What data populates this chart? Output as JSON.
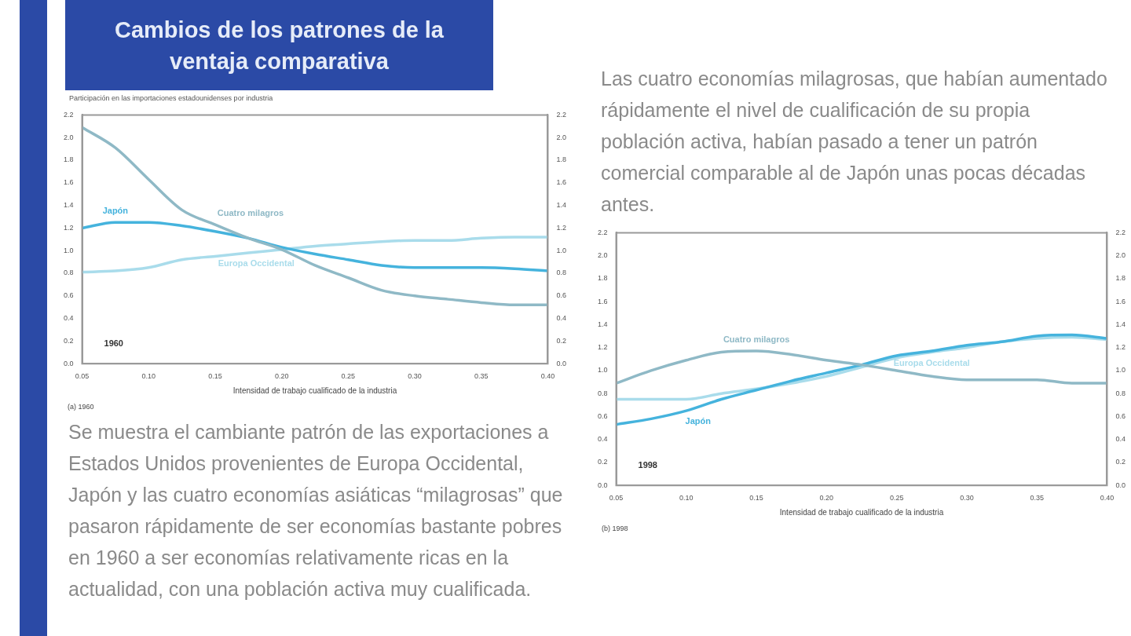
{
  "chart_data": [
    {
      "type": "line",
      "title": "Cambios de los patrones de la ventaja comparativa",
      "subtitle": "Participación en las importaciones estadounidenses por industria",
      "xlabel": "Intensidad de trabajo cualificado de la industria",
      "x": [
        0.05,
        0.075,
        0.1,
        0.125,
        0.15,
        0.175,
        0.2,
        0.225,
        0.25,
        0.275,
        0.3,
        0.325,
        0.35,
        0.375,
        0.4
      ],
      "series": [
        {
          "name": "Cuatro milagros",
          "color": "#8fb9c6",
          "values": [
            2.09,
            1.91,
            1.63,
            1.36,
            1.23,
            1.11,
            1.01,
            0.87,
            0.76,
            0.65,
            0.6,
            0.57,
            0.54,
            0.52,
            0.52
          ]
        },
        {
          "name": "Japón",
          "color": "#45b3dd",
          "values": [
            1.2,
            1.25,
            1.25,
            1.22,
            1.17,
            1.11,
            1.03,
            0.97,
            0.92,
            0.87,
            0.85,
            0.85,
            0.85,
            0.84,
            0.82
          ]
        },
        {
          "name": "Europa Occidental",
          "color": "#a9dceb",
          "values": [
            0.81,
            0.82,
            0.85,
            0.92,
            0.95,
            0.98,
            1.01,
            1.04,
            1.06,
            1.08,
            1.09,
            1.09,
            1.11,
            1.12,
            1.12
          ]
        }
      ],
      "xlim": [
        0.05,
        0.4
      ],
      "xticks": [
        0.05,
        {
          "value": 0.1,
          "label": "0.10"
        },
        0.15,
        {
          "value": 0.2,
          "label": "0.20"
        },
        0.25,
        {
          "value": 0.3,
          "label": "0.30"
        },
        0.35,
        {
          "value": 0.4,
          "label": "0.40"
        }
      ],
      "ylim": [
        0,
        2.2
      ],
      "yticks": [
        {
          "value": 0,
          "label": "0.0"
        },
        0.2,
        0.4,
        0.6,
        0.8,
        {
          "value": 1,
          "label": "1.0"
        },
        1.2,
        1.4,
        1.6,
        1.8,
        {
          "value": 2,
          "label": "2.0"
        },
        2.2
      ],
      "y2lim": [
        0,
        2.2
      ],
      "y2ticks": [
        {
          "value": 0,
          "label": "0.0"
        },
        0.2,
        0.4,
        0.6,
        0.8,
        {
          "value": 1,
          "label": "1.0"
        },
        1.2,
        1.4,
        1.6,
        1.8,
        {
          "value": 2,
          "label": "2.0"
        },
        2.2
      ],
      "grid": false,
      "legend": false,
      "annotations": [
        "1960",
        "(a) 1960",
        "Se muestra el cambiante patrón de las exportaciones a Estados Unidos provenientes de Europa Occidental, Japón y las cuatro economías asiáticas “milagrosas” que pasaron rápidamente de ser economías bastante pobres en 1960 a ser economías relativamente ricas en la actualidad, con una población activa muy cualificada."
      ]
    },
    {
      "type": "line",
      "xlabel": "Intensidad de trabajo cualificado de la industria",
      "x": [
        0.05,
        0.075,
        0.1,
        0.125,
        0.15,
        0.175,
        0.2,
        0.225,
        0.25,
        0.275,
        0.3,
        0.325,
        0.35,
        0.375,
        0.4
      ],
      "series": [
        {
          "name": "Cuatro milagros",
          "color": "#8fb9c6",
          "values": [
            0.89,
            1.0,
            1.09,
            1.16,
            1.17,
            1.14,
            1.09,
            1.05,
            1.0,
            0.95,
            0.92,
            0.92,
            0.92,
            0.89,
            0.89
          ]
        },
        {
          "name": "Japón",
          "color": "#45b3dd",
          "values": [
            0.53,
            0.58,
            0.65,
            0.75,
            0.83,
            0.91,
            0.98,
            1.05,
            1.13,
            1.17,
            1.22,
            1.25,
            1.3,
            1.31,
            1.28
          ]
        },
        {
          "name": "Europa Occidental",
          "color": "#a9dceb",
          "values": [
            0.75,
            0.75,
            0.75,
            0.8,
            0.84,
            0.89,
            0.95,
            1.03,
            1.11,
            1.16,
            1.2,
            1.25,
            1.28,
            1.29,
            1.27
          ]
        }
      ],
      "xlim": [
        0.05,
        0.4
      ],
      "xticks": [
        0.05,
        {
          "value": 0.1,
          "label": "0.10"
        },
        0.15,
        {
          "value": 0.2,
          "label": "0.20"
        },
        0.25,
        {
          "value": 0.3,
          "label": "0.30"
        },
        0.35,
        {
          "value": 0.4,
          "label": "0.40"
        }
      ],
      "ylim": [
        0,
        2.2
      ],
      "yticks": [
        {
          "value": 0,
          "label": "0.0"
        },
        0.2,
        0.4,
        0.6,
        0.8,
        {
          "value": 1,
          "label": "1.0"
        },
        1.2,
        1.4,
        1.6,
        1.8,
        {
          "value": 2,
          "label": "2.0"
        },
        2.2
      ],
      "y2lim": [
        0,
        2.2
      ],
      "y2ticks": [
        {
          "value": 0,
          "label": "0.0"
        },
        0.2,
        0.4,
        0.6,
        0.8,
        {
          "value": 1,
          "label": "1.0"
        },
        1.2,
        1.4,
        1.6,
        1.8,
        {
          "value": 2,
          "label": "2.0"
        },
        2.2
      ],
      "grid": false,
      "legend": false,
      "annotations": [
        "Las cuatro economías milagrosas, que habían aumentado rápidamente el nivel de cualificación de su propia población activa, habían pasado a tener un patrón comercial comparable al de Japón unas pocas décadas antes.",
        "1998",
        "(b) 1998"
      ]
    }
  ]
}
